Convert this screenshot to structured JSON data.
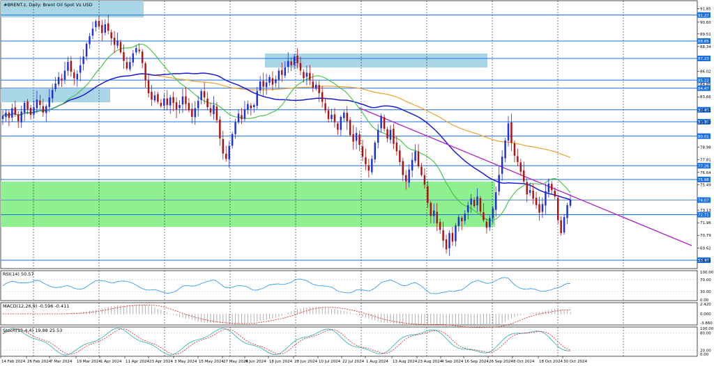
{
  "chart_title": "#BRENT.z, Daily:  Brent Oil Spot Vs USD",
  "colors": {
    "background": "#ffffff",
    "grid": "#000000",
    "bull": "#1e2fd8",
    "bear": "#b01010",
    "ma_fast": "#3cc43c",
    "ma_mid": "#1a1ad8",
    "ma_slow": "#f0a030",
    "trendline": "#b020c8",
    "hline": "#1a6fe0",
    "zone_blue": "#a9d6e6",
    "zone_green": "#8ef08e",
    "rsi": "#1e90ff",
    "macd_hist": "#b0b0b0",
    "macd_signal": "#e02020",
    "stoch_main": "#20b0b0",
    "stoch_signal": "#e02020",
    "tag_bg": "#1a6fe0",
    "current_price_line": "#b0b0b0"
  },
  "chart_data": [
    {
      "type": "candlestick",
      "title": "#BRENT.z, Daily:  Brent Oil Spot Vs USD",
      "price_axis_ticks": [
        "91.85",
        "90.60",
        "89.51",
        "88.34",
        "86.02",
        "84.85",
        "83.66",
        "82.41",
        "81.30",
        "78.98",
        "77.81",
        "76.64",
        "75.49",
        "73.13",
        "71.96",
        "70.79",
        "69.62",
        "68.44"
      ],
      "highlighted_levels": [
        "91.27",
        "88.85",
        "87.23",
        "85.22",
        "84.47",
        "82.46",
        "81.35",
        "80.01",
        "77.26",
        "75.98",
        "74.07",
        "72.71",
        "68.48"
      ],
      "current_price": "74.07",
      "x_axis_labels": [
        "14 Feb 2024",
        "26 Feb 2024",
        "7 Mar 2024",
        "19 Mar 2024",
        "1 Apr 2024",
        "11 Apr 2024",
        "23 Apr 2024",
        "3 May 2024",
        "15 May 2024",
        "27 May 2024",
        "6 Jun 2024",
        "18 Jun 2024",
        "28 Jun 2024",
        "10 Jul 2024",
        "22 Jul 2024",
        "1 Aug 2024",
        "13 Aug 2024",
        "23 Aug 2024",
        "4 Sep 2024",
        "16 Sep 2024",
        "26 Sep 2024",
        "8 Oct 2024",
        "18 Oct 2024",
        "30 Oct 2024"
      ],
      "approx_closes": [
        81.9,
        82.2,
        81.7,
        82.6,
        82.0,
        81.4,
        82.3,
        83.1,
        82.5,
        82.0,
        82.7,
        83.4,
        82.9,
        82.2,
        82.8,
        83.6,
        84.3,
        84.9,
        85.5,
        85.2,
        86.1,
        86.9,
        86.0,
        85.4,
        85.8,
        86.6,
        87.4,
        88.6,
        89.3,
        90.0,
        90.7,
        90.2,
        89.6,
        90.4,
        89.8,
        89.1,
        88.5,
        88.9,
        87.8,
        87.0,
        86.3,
        86.9,
        87.7,
        88.2,
        87.9,
        86.8,
        85.2,
        84.0,
        83.4,
        83.8,
        83.2,
        82.8,
        83.5,
        82.9,
        83.6,
        83.1,
        82.5,
        82.9,
        83.7,
        83.0,
        82.4,
        81.8,
        82.6,
        83.3,
        84.2,
        83.6,
        82.7,
        82.2,
        82.9,
        81.5,
        79.8,
        78.4,
        77.9,
        79.1,
        80.2,
        81.3,
        82.1,
        81.6,
        82.5,
        83.0,
        82.6,
        82.9,
        84.2,
        85.1,
        84.6,
        85.0,
        85.5,
        84.8,
        85.3,
        86.1,
        85.7,
        86.4,
        87.0,
        86.6,
        87.4,
        86.8,
        86.1,
        85.4,
        85.9,
        85.2,
        84.5,
        84.8,
        84.0,
        83.2,
        82.4,
        81.6,
        82.0,
        81.3,
        80.6,
        81.8,
        82.2,
        81.4,
        80.1,
        79.5,
        80.3,
        79.2,
        78.1,
        77.4,
        76.8,
        77.9,
        79.4,
        80.6,
        81.9,
        80.7,
        79.8,
        80.6,
        79.3,
        78.6,
        77.6,
        76.4,
        75.8,
        76.9,
        77.8,
        78.6,
        77.2,
        76.4,
        75.5,
        73.8,
        72.6,
        73.1,
        71.9,
        71.3,
        70.3,
        69.5,
        71.0,
        70.2,
        71.7,
        72.5,
        72.1,
        72.8,
        73.6,
        74.2,
        73.5,
        74.4,
        73.0,
        72.2,
        71.5,
        72.4,
        73.3,
        74.8,
        76.4,
        78.1,
        79.6,
        81.2,
        79.4,
        78.2,
        77.6,
        76.7,
        75.8,
        74.6,
        75.0,
        74.2,
        73.6,
        72.9,
        73.7,
        74.9,
        75.6,
        75.0,
        74.4,
        72.2,
        71.0,
        72.5,
        73.6,
        74.1
      ]
    },
    {
      "type": "line",
      "title": "RSI(14) 50.57",
      "axis_ticks": [
        "100.00",
        "70.00",
        "30.00",
        "0.00"
      ],
      "last_value": 50.57
    },
    {
      "type": "bar",
      "title": "MACD(12,26,9) -0.596 -0.411",
      "axis_ticks": [
        "2.420",
        "0.000",
        "-3.860"
      ],
      "last_values": {
        "main": -0.596,
        "signal": -0.411
      }
    },
    {
      "type": "line",
      "title": "Stoch(15,4,4) 19.88 25.53",
      "axis_ticks": [
        "100.00",
        "80.00",
        "20.00",
        "0.00"
      ],
      "last_values": {
        "main": 19.88,
        "signal": 25.53
      }
    }
  ]
}
